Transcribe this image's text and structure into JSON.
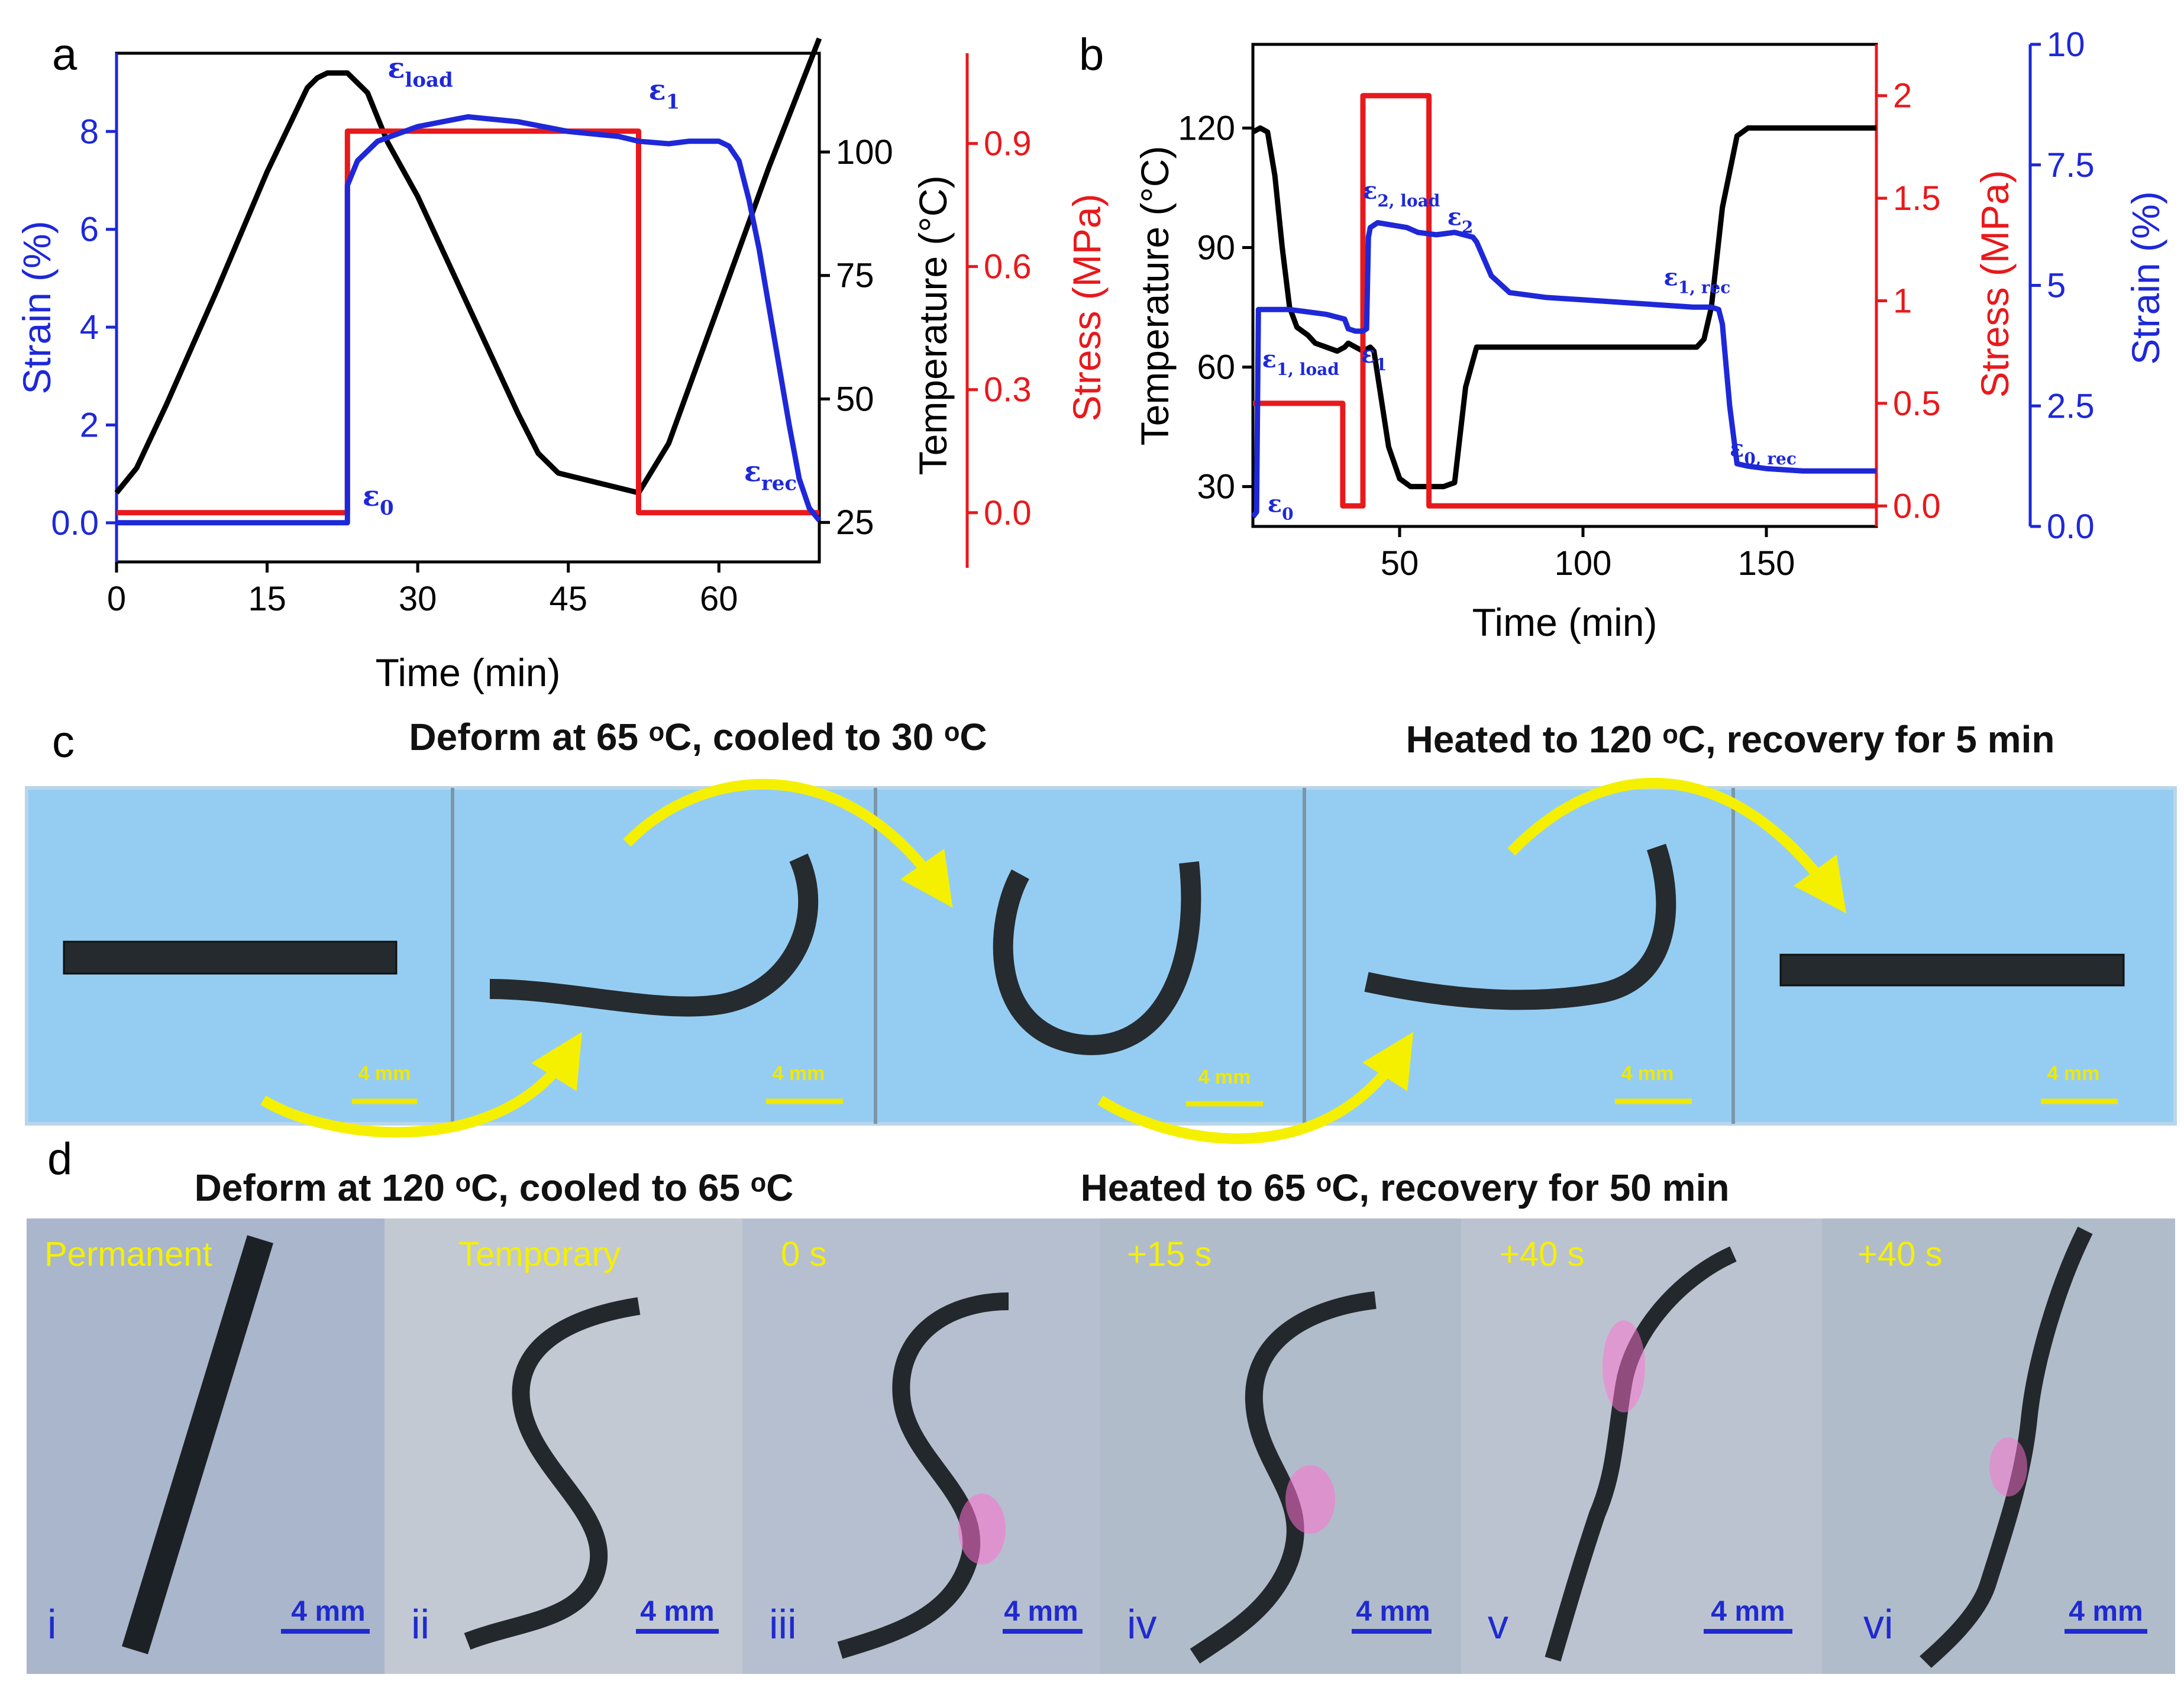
{
  "panels": {
    "a": "a",
    "b": "b",
    "c": "c",
    "d": "d"
  },
  "colors": {
    "temperature": "#000000",
    "stress": "#e8191c",
    "strain": "#1e28d8",
    "photo_c_bg": "#95cdf2",
    "photo_d_bg": "#a9b6cc",
    "arrow": "#f5f000",
    "scalebar_d": "#1f2ad0"
  },
  "chart_data": [
    {
      "panel": "a",
      "type": "line",
      "xlabel": "Time (min)",
      "xlim": [
        0,
        70
      ],
      "xticks": [
        0,
        15,
        30,
        45,
        60
      ],
      "axes": {
        "strain": {
          "label": "Strain (%)",
          "ylim": [
            -0.8,
            9.6
          ],
          "ticks": [
            0,
            2,
            4,
            6,
            8
          ],
          "position": "left"
        },
        "temperature": {
          "label": "Temperature (°C)",
          "ylim": [
            17,
            120
          ],
          "ticks": [
            25,
            50,
            75,
            100
          ],
          "position": "right"
        },
        "stress": {
          "label": "Stress (MPa)",
          "ylim": [
            -0.12,
            1.12
          ],
          "ticks": [
            0.0,
            0.3,
            0.6,
            0.9
          ],
          "position": "right-outer"
        }
      },
      "series": [
        {
          "name": "Temperature",
          "axis": "temperature",
          "x": [
            0,
            2,
            5,
            10,
            15,
            19,
            20,
            21,
            23,
            25,
            27,
            30,
            35,
            40,
            42,
            44,
            46,
            50,
            52,
            55,
            60,
            65,
            70
          ],
          "y": [
            31,
            36,
            49,
            72,
            96,
            113,
            115,
            116,
            116,
            112,
            102,
            91,
            69,
            47,
            39,
            35,
            34,
            32,
            31,
            41,
            69,
            97,
            123
          ]
        },
        {
          "name": "Stress",
          "axis": "stress",
          "x": [
            0,
            23,
            23,
            52,
            52,
            70
          ],
          "y": [
            0.0,
            0.0,
            0.93,
            0.93,
            0.0,
            0.0
          ]
        },
        {
          "name": "Strain",
          "axis": "strain",
          "x": [
            0,
            23,
            23,
            24,
            26,
            30,
            35,
            40,
            45,
            50,
            52,
            55,
            57,
            60,
            61,
            62,
            63,
            64,
            65,
            66,
            67,
            68,
            69,
            70
          ],
          "y": [
            0,
            0,
            6.9,
            7.4,
            7.8,
            8.1,
            8.3,
            8.2,
            8.0,
            7.9,
            7.8,
            7.75,
            7.8,
            7.8,
            7.7,
            7.4,
            6.6,
            5.6,
            4.4,
            3.2,
            2.0,
            0.9,
            0.3,
            0.05
          ]
        }
      ],
      "annotations": [
        {
          "symbol": "ε",
          "sub": "load",
          "x": 27,
          "y": 9.1
        },
        {
          "symbol": "ε",
          "sub": "1",
          "x": 53,
          "y": 8.65
        },
        {
          "symbol": "ε",
          "sub": "0",
          "x": 24.5,
          "y": 0.35
        },
        {
          "symbol": "ε",
          "sub": "rec",
          "x": 62.5,
          "y": 0.85
        }
      ]
    },
    {
      "panel": "b",
      "type": "line",
      "xlabel": "Time (min)",
      "xlim": [
        10,
        180
      ],
      "xticks": [
        50,
        100,
        150
      ],
      "axes": {
        "temperature": {
          "label": "Temperature (°C)",
          "ylim": [
            20,
            141
          ],
          "ticks": [
            30,
            60,
            90,
            120
          ],
          "position": "left"
        },
        "stress": {
          "label": "Stress (MPa)",
          "ylim": [
            -0.1,
            2.25
          ],
          "ticks": [
            0.0,
            0.5,
            1.0,
            1.5,
            2.0
          ],
          "position": "right"
        },
        "strain": {
          "label": "Strain (%)",
          "ylim": [
            0.0,
            10.0
          ],
          "ticks": [
            0.0,
            2.5,
            5.0,
            7.5,
            10.0
          ],
          "position": "right-outer"
        }
      },
      "series": [
        {
          "name": "Temperature",
          "axis": "temperature",
          "x": [
            10,
            12,
            14,
            16,
            18,
            20,
            22,
            25,
            27,
            30,
            33,
            35,
            36,
            38,
            40,
            42,
            43,
            45,
            47,
            50,
            53,
            55,
            57,
            60,
            62,
            65,
            68,
            71,
            75,
            80,
            90,
            100,
            120,
            131,
            133,
            135,
            138,
            142,
            145,
            148,
            160,
            180
          ],
          "y": [
            119,
            120,
            119,
            108,
            90,
            75,
            70,
            68,
            66,
            65,
            64,
            65,
            66,
            65,
            64,
            65,
            64,
            52,
            40,
            32,
            30,
            30,
            30,
            30,
            30,
            31,
            55,
            65,
            65,
            65,
            65,
            65,
            65,
            65,
            67,
            75,
            100,
            118,
            120,
            120,
            120,
            120
          ]
        },
        {
          "name": "Stress",
          "axis": "stress",
          "x": [
            10,
            34.5,
            34.5,
            36,
            36,
            39,
            39,
            40,
            40,
            58,
            58,
            180
          ],
          "y": [
            0.5,
            0.5,
            0.0,
            0.0,
            0.0,
            0.0,
            0.0,
            0.0,
            2.0,
            2.0,
            0.0,
            0.0
          ]
        },
        {
          "name": "Strain",
          "axis": "strain",
          "x": [
            10,
            11,
            11.5,
            13,
            20,
            25,
            30,
            35,
            36,
            38,
            40,
            41,
            41.5,
            42,
            44,
            48,
            52,
            55,
            60,
            65,
            70,
            71,
            75,
            80,
            90,
            100,
            110,
            120,
            130,
            135,
            137,
            138,
            140,
            142,
            145,
            150,
            160,
            180
          ],
          "y": [
            0.2,
            0.3,
            4.5,
            4.5,
            4.5,
            4.45,
            4.4,
            4.3,
            4.1,
            4.05,
            4.05,
            4.1,
            6.0,
            6.2,
            6.3,
            6.25,
            6.2,
            6.1,
            6.05,
            6.1,
            6.0,
            5.9,
            5.2,
            4.85,
            4.75,
            4.7,
            4.65,
            4.6,
            4.55,
            4.55,
            4.5,
            4.2,
            2.5,
            1.3,
            1.25,
            1.2,
            1.15,
            1.15
          ]
        }
      ],
      "annotations": [
        {
          "symbol": "ε",
          "sub": "2, load",
          "x": 40,
          "y": 6.8
        },
        {
          "symbol": "ε",
          "sub": "2",
          "x": 63,
          "y": 6.25
        },
        {
          "symbol": "ε",
          "sub": "1, rec",
          "x": 122,
          "y": 5.0
        },
        {
          "symbol": "ε",
          "sub": "1, load",
          "x": 12.5,
          "y": 3.3
        },
        {
          "symbol": "ε",
          "sub": "1",
          "x": 39.5,
          "y": 3.4
        },
        {
          "symbol": "ε",
          "sub": "0, rec",
          "x": 140,
          "y": 1.45
        },
        {
          "symbol": "ε",
          "sub": "0",
          "x": 14,
          "y": 0.3
        }
      ]
    }
  ],
  "panel_c": {
    "caption_left": "Deform at 65 ᵒC, cooled to 30 ᵒC",
    "caption_right": "Heated to 120 ᵒC, recovery for 5 min",
    "scalebar": "4 mm"
  },
  "panel_d": {
    "caption_left": "Deform at 120 ᵒC, cooled to 65 ᵒC",
    "caption_right": "Heated to 65 ᵒC, recovery for 50 min",
    "scalebar": "4 mm",
    "frames": [
      {
        "label": "Permanent",
        "number": "i"
      },
      {
        "label": "Temporary",
        "number": "ii"
      },
      {
        "label": "0 s",
        "number": "iii"
      },
      {
        "label": "+15 s",
        "number": "iv"
      },
      {
        "label": "+40 s",
        "number": "v"
      },
      {
        "label": "+40 s",
        "number": "vi"
      }
    ]
  }
}
